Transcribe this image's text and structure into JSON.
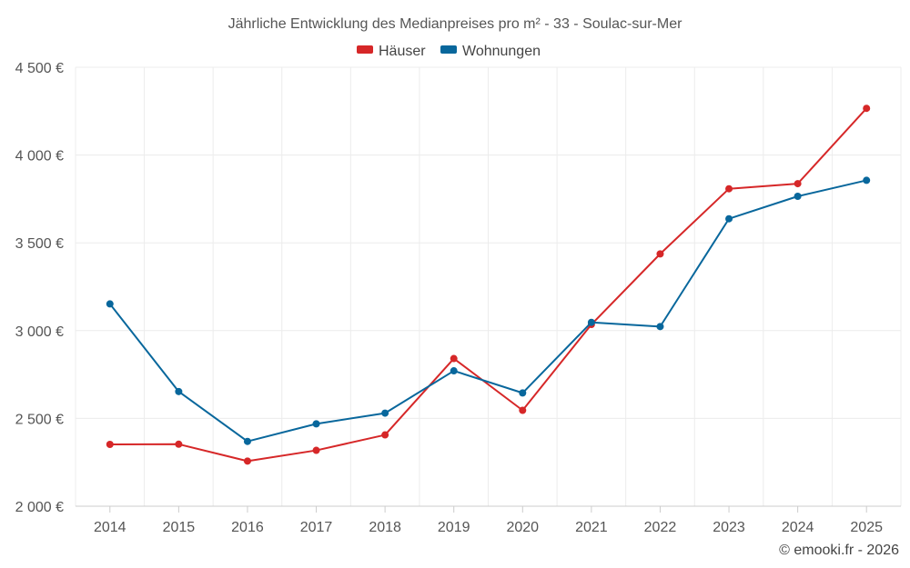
{
  "chart_data": {
    "type": "line",
    "title": "Jährliche Entwicklung des Medianpreises pro m² - 33 - Soulac-sur-Mer",
    "categories": [
      "2014",
      "2015",
      "2016",
      "2017",
      "2018",
      "2019",
      "2020",
      "2021",
      "2022",
      "2023",
      "2024",
      "2025"
    ],
    "series": [
      {
        "name": "Häuser",
        "color": "#d62728",
        "values": [
          2352,
          2353,
          2257,
          2318,
          2406,
          2841,
          2546,
          3035,
          3437,
          3808,
          3837,
          4266
        ]
      },
      {
        "name": "Wohnungen",
        "color": "#08679c",
        "values": [
          3152,
          2653,
          2369,
          2469,
          2530,
          2771,
          2645,
          3047,
          3023,
          3637,
          3765,
          3856
        ]
      }
    ],
    "ylim": [
      2000,
      4500
    ],
    "yticks": [
      2000,
      2500,
      3000,
      3500,
      4000,
      4500
    ],
    "ytick_labels": [
      "2 000 €",
      "2 500 €",
      "3 000 €",
      "3 500 €",
      "4 000 €",
      "4 500 €"
    ],
    "xlabel": "",
    "ylabel": "",
    "grid": true,
    "legend_position": "top-center"
  },
  "credit": "© emooki.fr - 2026"
}
